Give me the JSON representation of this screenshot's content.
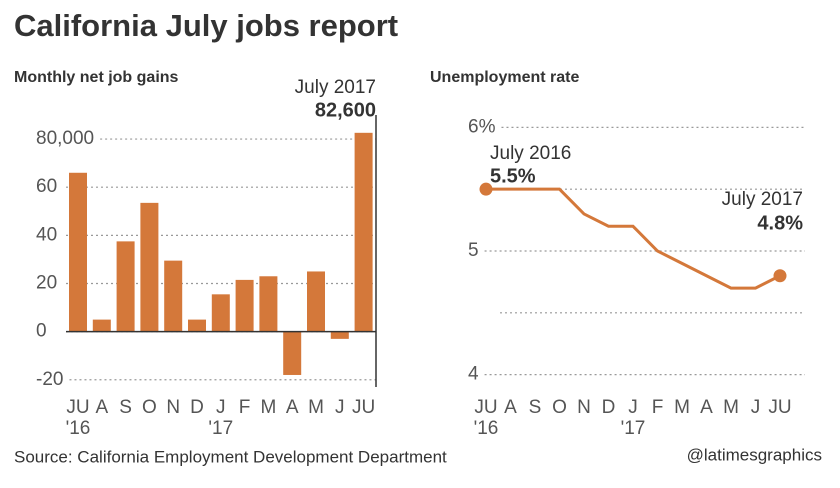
{
  "title": "California July jobs report",
  "source": "Source: California Employment Development Department",
  "credit": "@latimesgraphics",
  "chart_data": [
    {
      "type": "bar",
      "title": "Monthly net job gains",
      "color": "#d4783a",
      "categories": [
        "JU",
        "A",
        "S",
        "O",
        "N",
        "D",
        "J",
        "F",
        "M",
        "A",
        "M",
        "J",
        "JU"
      ],
      "category_sublabels": [
        "'16",
        null,
        null,
        null,
        null,
        null,
        "'17",
        null,
        null,
        null,
        null,
        null,
        null
      ],
      "values": [
        66000,
        5000,
        37500,
        53500,
        29500,
        5000,
        15500,
        21500,
        23000,
        -18000,
        25000,
        -3000,
        82600
      ],
      "ylim": [
        -23000,
        90000
      ],
      "yticks": [
        {
          "value": -20000,
          "label": "-20"
        },
        0,
        {
          "value": 20000,
          "label": "20"
        },
        {
          "value": 40000,
          "label": "40"
        },
        {
          "value": 60000,
          "label": "60"
        },
        {
          "value": 80000,
          "label": "80,000"
        }
      ],
      "grid": true,
      "annotation": {
        "label": "July 2017",
        "value": 82600,
        "value_label": "82,600"
      }
    },
    {
      "type": "line",
      "title": "Unemployment rate",
      "color": "#d4783a",
      "categories": [
        "JU",
        "A",
        "S",
        "O",
        "N",
        "D",
        "J",
        "F",
        "M",
        "A",
        "M",
        "J",
        "JU"
      ],
      "category_sublabels": [
        "'16",
        null,
        null,
        null,
        null,
        null,
        "'17",
        null,
        null,
        null,
        null,
        null,
        null
      ],
      "values": [
        5.5,
        5.5,
        5.5,
        5.5,
        5.3,
        5.2,
        5.2,
        5.0,
        4.9,
        4.8,
        4.7,
        4.7,
        4.8
      ],
      "ylim": [
        3.9,
        6.1
      ],
      "yticks": [
        4,
        5,
        {
          "value": 6,
          "label": "6%"
        }
      ],
      "minor_yticks": [
        4.5,
        5.5
      ],
      "grid": true,
      "annotations": [
        {
          "label": "July 2016",
          "value": 5.5,
          "value_label": "5.5%"
        },
        {
          "label": "July 2017",
          "value": 4.8,
          "value_label": "4.8%"
        }
      ]
    }
  ]
}
